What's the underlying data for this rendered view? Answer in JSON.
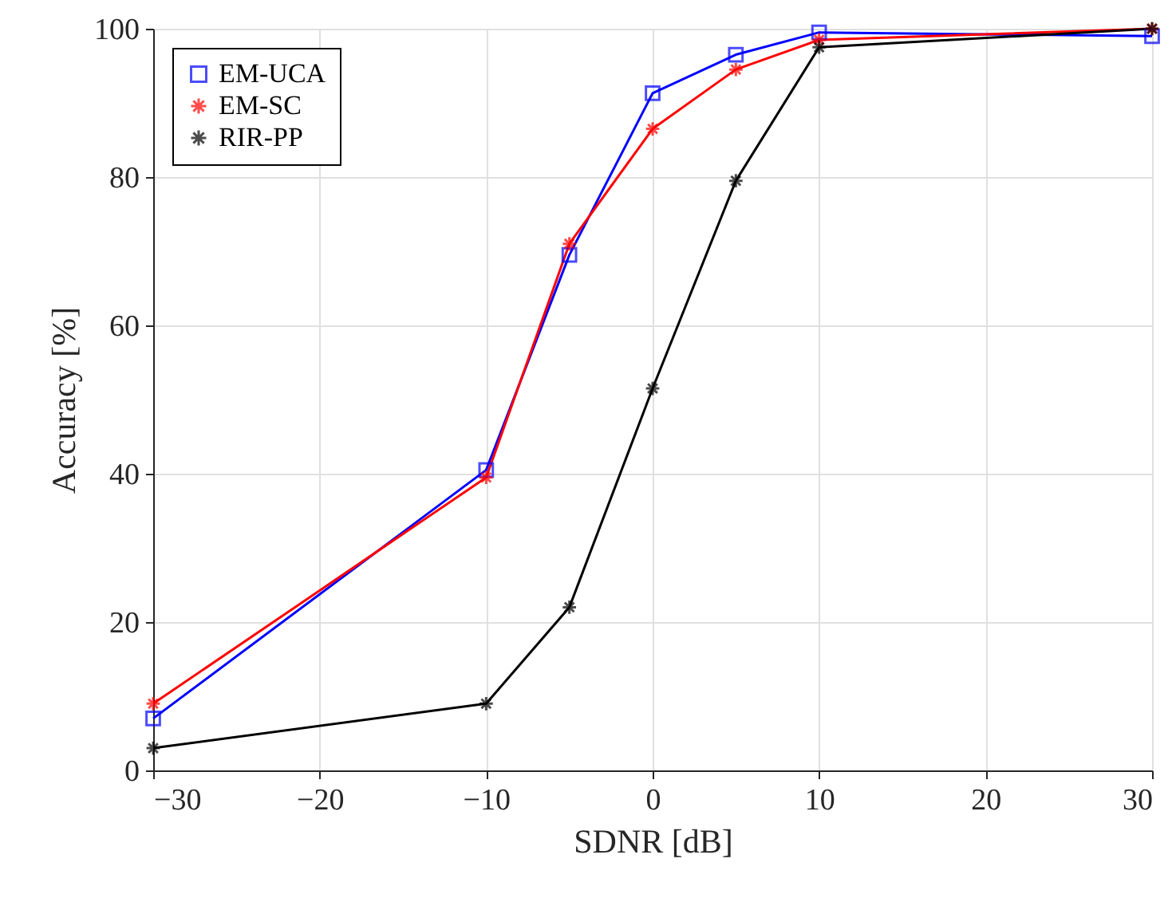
{
  "chart_data": {
    "type": "line",
    "xlabel": "SDNR [dB]",
    "ylabel": "Accuracy [%]",
    "x": [
      -30,
      -10,
      -5,
      0,
      5,
      10,
      30
    ],
    "series": [
      {
        "name": "EM-UCA",
        "color": "#0000ff",
        "marker": "square",
        "values": [
          7,
          40.5,
          69.5,
          91.3,
          96.5,
          99.5,
          99
        ]
      },
      {
        "name": "EM-SC",
        "color": "#ff0000",
        "marker": "cross",
        "values": [
          9,
          39.5,
          71,
          86.5,
          94.5,
          98.5,
          100
        ]
      },
      {
        "name": "RIR-PP",
        "color": "#000000",
        "marker": "cross",
        "values": [
          3,
          9,
          22,
          51.5,
          79.5,
          97.5,
          100
        ]
      }
    ],
    "xlim": [
      -30,
      30
    ],
    "xticks": [
      -30,
      -20,
      -10,
      0,
      10,
      20,
      30
    ],
    "ylim": [
      0,
      100
    ],
    "yticks": [
      0,
      20,
      40,
      60,
      80,
      100
    ],
    "grid": true,
    "legend": "top left",
    "line_style": "solid"
  }
}
